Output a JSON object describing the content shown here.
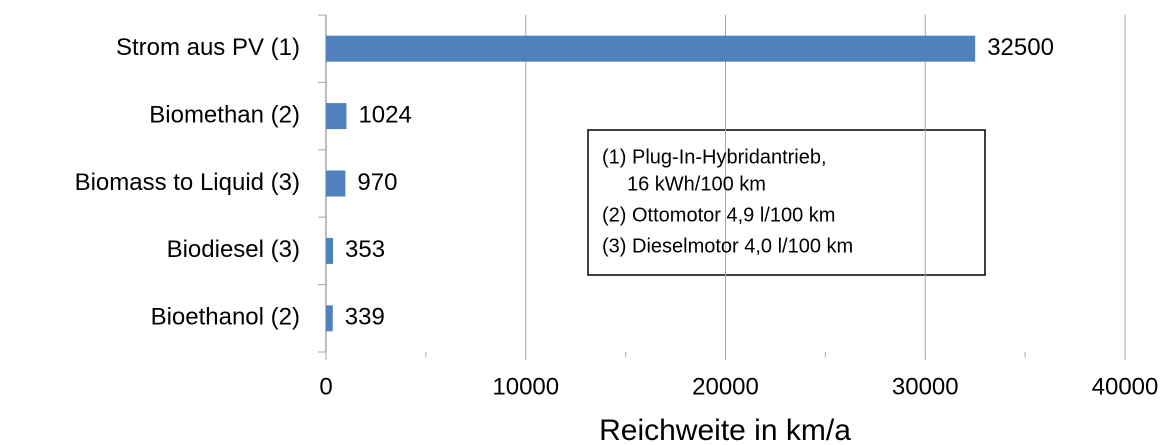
{
  "chart_data": {
    "type": "bar",
    "orientation": "horizontal",
    "categories": [
      "Strom aus PV (1)",
      "Biomethan (2)",
      "Biomass to Liquid (3)",
      "Biodiesel (3)",
      "Bioethanol (2)"
    ],
    "values": [
      32500,
      1024,
      970,
      353,
      339
    ],
    "color": "#4f81bd",
    "xlabel": "Reichweite in km/a",
    "xlim": [
      0,
      40000
    ],
    "xticks": [
      0,
      10000,
      20000,
      30000,
      40000
    ],
    "xminorticks": [
      5000,
      15000,
      25000,
      35000
    ],
    "grid": true,
    "notes": [
      "(1) Plug-In-Hybridantrieb,",
      "16 kWh/100 km",
      "(2) Ottomotor 4,9 l/100 km",
      "(3) Dieselmotor 4,0 l/100 km"
    ]
  }
}
